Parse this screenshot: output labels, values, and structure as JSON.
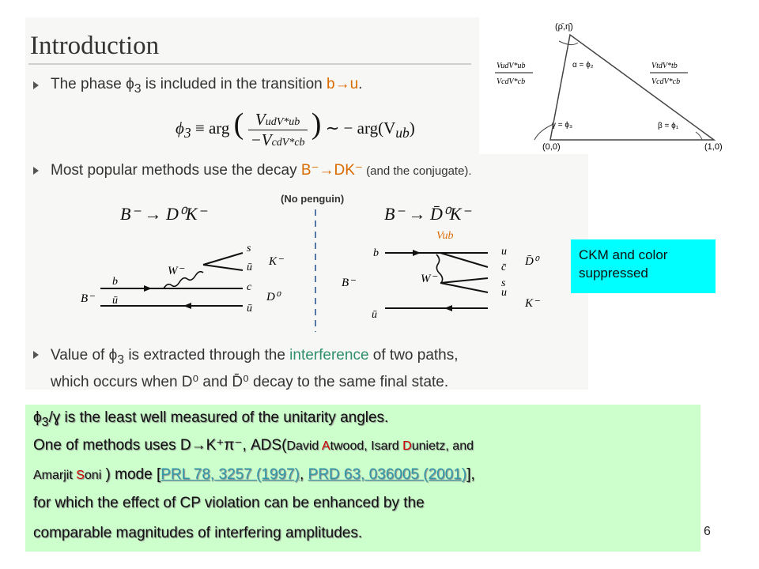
{
  "slide": {
    "title": "Introduction",
    "bullet1": {
      "text": "The phase ϕ",
      "sub": "3",
      "rest": " is included in the transition ",
      "highlight": "b→u",
      "end": "."
    },
    "equation": {
      "lhs": "ϕ",
      "lhs_sub": "3",
      "eq": " ≡ arg",
      "num": "V",
      "num_rest": "udV*ub",
      "den": "−V",
      "den_rest": "cdV*cb",
      "tail": " ∼ − arg(V",
      "tail_sub": "ub",
      "tail_end": ")"
    },
    "bullet2": {
      "text": "Most popular methods use the decay ",
      "highlight": "B⁻→DK⁻",
      "rest": " (and the conjugate)."
    },
    "no_penguin": "(No penguin)",
    "decay_left": "B⁻ → D⁰K⁻",
    "decay_right": "B⁻ → D̄⁰K⁻",
    "bullet3": {
      "line1a": "Value of ϕ",
      "line1sub": "3",
      "line1b": " is extracted through the ",
      "highlight": "interference",
      "line1c": " of two paths,",
      "line2": "which occurs when D⁰ and D̄⁰ decay to the same final state."
    }
  },
  "diagram_left": {
    "W": "W⁻",
    "s": "s",
    "ubar_top": "ū",
    "Kminus": "K⁻",
    "b": "b",
    "c": "c",
    "Bminus": "B⁻",
    "ubar_bot": "ū",
    "D0": "D⁰",
    "ubar_bottom2": "ū"
  },
  "diagram_right": {
    "Vub": "Vub",
    "b": "b",
    "u": "u",
    "cbar": "c̄",
    "D0bar": "D̄⁰",
    "W": "W⁻",
    "s": "s",
    "Bminus": "B⁻",
    "ubar": "ū",
    "u2": "u",
    "Kminus": "K⁻"
  },
  "triangle": {
    "apex": "(ρ̄,η̄)",
    "alpha": "α = ϕ₂",
    "beta": "β = ϕ₁",
    "gamma": "γ = ϕ₃",
    "origin": "(0,0)",
    "one": "(1,0)",
    "left_ratio_num": "VudV*ub",
    "left_ratio_den": "VcdV*cb",
    "right_ratio_num": "VtdV*tb",
    "right_ratio_den": "VcdV*cb"
  },
  "ckm_note": "CKM and color suppressed",
  "green": {
    "line1_phi": "ϕ",
    "line1_sub": "3",
    "line1_sep": "/ɣ",
    "line1_rest": " is the least well measured of the unitarity angles.",
    "line2_a": "One of methods uses D→K⁺π⁻, ADS(",
    "line2_name1_pre": "David ",
    "line2_name1_A": "A",
    "line2_name1_post": "twood, Isard ",
    "line2_name2_D": "D",
    "line2_name2_post": "unietz, and",
    "line3_pre": "Amarjit ",
    "line3_S": "S",
    "line3_post": "oni",
    "line3_mode": " ) mode  [",
    "link1": "PRL 78, 3257 (1997)",
    "comma": ", ",
    "link2": "PRD 63, 036005 (2001)",
    "close": "],",
    "line4": "for which the effect of CP violation can be enhanced by the",
    "line5": "comparable magnitudes of interfering amplitudes."
  },
  "page_number": "6"
}
